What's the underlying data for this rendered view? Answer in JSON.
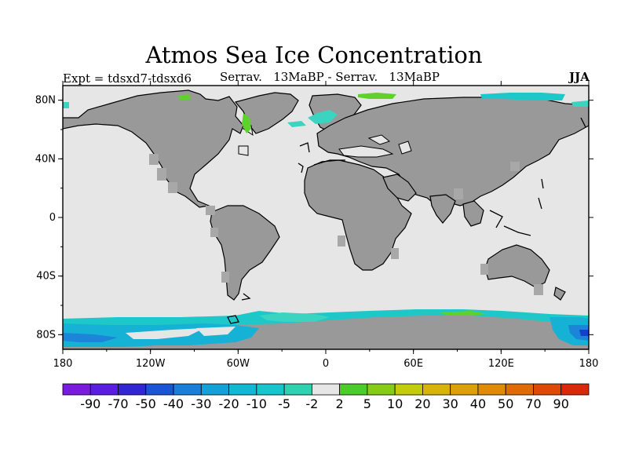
{
  "title": "Atmos Sea Ice Concentration",
  "expt_label": "Expt = tdsxd7-tdsxd6",
  "subtitle": "Serrav.   13MaBP - Serrav.   13MaBP",
  "season": "JJA",
  "colors": {
    "ocean": "#e6e6e6",
    "land": "#999999",
    "coast": "#000000",
    "ice_light_cyan": "#3ad4c0",
    "ice_cyan": "#1ec8c8",
    "ice_mid_blue": "#16b2d6",
    "ice_blue": "#1d85d9",
    "ice_deep_blue": "#1242c8",
    "ice_green": "#5ed12a"
  },
  "map": {
    "lat_ticks": [
      "80N",
      "40N",
      "0",
      "40S",
      "80S"
    ],
    "lon_ticks": [
      "180",
      "120W",
      "60W",
      "0",
      "60E",
      "120E",
      "180"
    ]
  },
  "colorbar": {
    "labels": [
      "-90",
      "-70",
      "-50",
      "-40",
      "-30",
      "-20",
      "-10",
      "-5",
      "-2",
      "2",
      "5",
      "10",
      "20",
      "30",
      "40",
      "50",
      "70",
      "90"
    ],
    "colors": [
      "#7a1be0",
      "#5a1ee0",
      "#3226d2",
      "#1a55d6",
      "#1a7fd9",
      "#14a0d8",
      "#10b8d4",
      "#16c6cc",
      "#2ed2b0",
      "#e6e6e6",
      "#4ccc2a",
      "#86cc16",
      "#c2cc0a",
      "#d8b40a",
      "#dea008",
      "#e08a06",
      "#e06a06",
      "#de4a06",
      "#d82a0a"
    ]
  }
}
